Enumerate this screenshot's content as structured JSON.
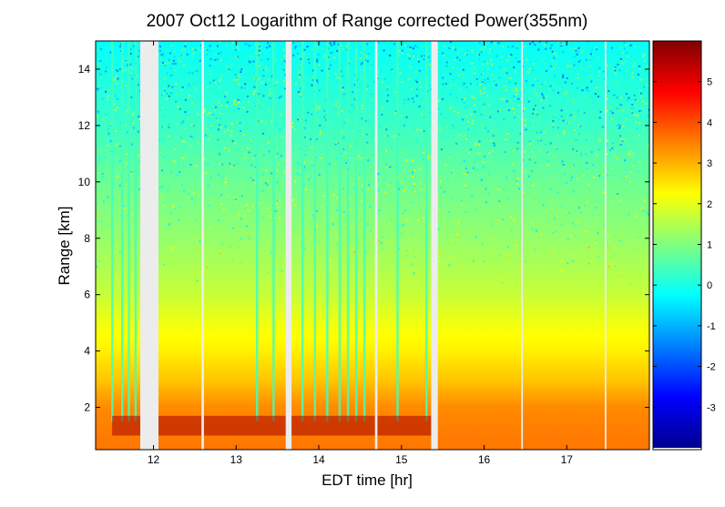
{
  "chart_data": {
    "type": "heatmap",
    "title": "2007 Oct12  Logarithm of Range corrected Power(355nm)",
    "xlabel": "EDT time [hr]",
    "ylabel": "Range [km]",
    "xlim": [
      11.3,
      18.0
    ],
    "ylim": [
      0.5,
      15.0
    ],
    "x_ticks": [
      12,
      13,
      14,
      15,
      16,
      17
    ],
    "y_ticks": [
      2,
      4,
      6,
      8,
      10,
      12,
      14
    ],
    "colorbar": {
      "colormap": "jet",
      "limits": [
        -4.0,
        6.0
      ],
      "ticks": [
        -3,
        -2,
        -1,
        0,
        1,
        2,
        3,
        4,
        5
      ]
    },
    "data_gaps": [
      {
        "x_start": 11.84,
        "x_end": 12.06
      },
      {
        "x_start": 12.58,
        "x_end": 12.61
      },
      {
        "x_start": 13.6,
        "x_end": 13.67
      },
      {
        "x_start": 14.68,
        "x_end": 14.71
      },
      {
        "x_start": 15.36,
        "x_end": 15.44
      },
      {
        "x_start": 16.45,
        "x_end": 16.47
      },
      {
        "x_start": 17.46,
        "x_end": 17.48
      }
    ],
    "profile": [
      {
        "range": 0.5,
        "value": 3.6
      },
      {
        "range": 2.0,
        "value": 3.4
      },
      {
        "range": 3.0,
        "value": 2.8
      },
      {
        "range": 4.0,
        "value": 2.4
      },
      {
        "range": 5.0,
        "value": 2.1
      },
      {
        "range": 6.0,
        "value": 1.7
      },
      {
        "range": 8.0,
        "value": 1.2
      },
      {
        "range": 10.0,
        "value": 0.8
      },
      {
        "range": 12.0,
        "value": 0.3
      },
      {
        "range": 15.0,
        "value": -0.2
      }
    ],
    "cloud_layer": {
      "x_start": 11.5,
      "x_end": 15.4,
      "range_low": 1.0,
      "range_high": 1.7
    },
    "clear_air_columns": [
      11.5,
      11.62,
      11.7,
      11.78,
      13.25,
      13.45,
      13.8,
      13.95,
      14.1,
      14.25,
      14.35,
      14.45,
      14.55,
      14.95,
      15.3
    ],
    "grid": false
  }
}
